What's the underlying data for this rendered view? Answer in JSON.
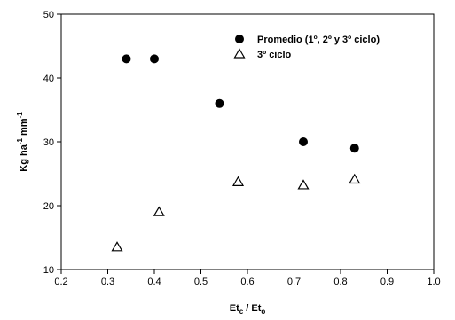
{
  "chart_data": {
    "type": "scatter",
    "xlabel": {
      "main": "Et",
      "sub1": "c",
      "sep": " / Et",
      "sub2": "o"
    },
    "ylabel": {
      "main": "Kg ha",
      "sup1": "-1",
      "mid": " mm",
      "sup2": "-1"
    },
    "xlim": [
      0.2,
      1.0
    ],
    "ylim": [
      10,
      50
    ],
    "xticks": [
      "0.2",
      "0.3",
      "0.4",
      "0.5",
      "0.6",
      "0.7",
      "0.8",
      "0.9",
      "1.0"
    ],
    "yticks": [
      "10",
      "20",
      "30",
      "40",
      "50"
    ],
    "legend_position": "top-right",
    "series": [
      {
        "name": "Promedio (1º, 2º y 3º ciclo)",
        "marker": "filled-circle",
        "color": "#000000",
        "points": [
          {
            "x": 0.34,
            "y": 43
          },
          {
            "x": 0.4,
            "y": 43
          },
          {
            "x": 0.54,
            "y": 36
          },
          {
            "x": 0.72,
            "y": 30
          },
          {
            "x": 0.83,
            "y": 29
          }
        ]
      },
      {
        "name": "3º ciclo",
        "marker": "open-triangle",
        "color": "#000000",
        "points": [
          {
            "x": 0.32,
            "y": 13.5
          },
          {
            "x": 0.41,
            "y": 19
          },
          {
            "x": 0.58,
            "y": 23.7
          },
          {
            "x": 0.72,
            "y": 23.2
          },
          {
            "x": 0.83,
            "y": 24.1
          }
        ]
      }
    ]
  }
}
